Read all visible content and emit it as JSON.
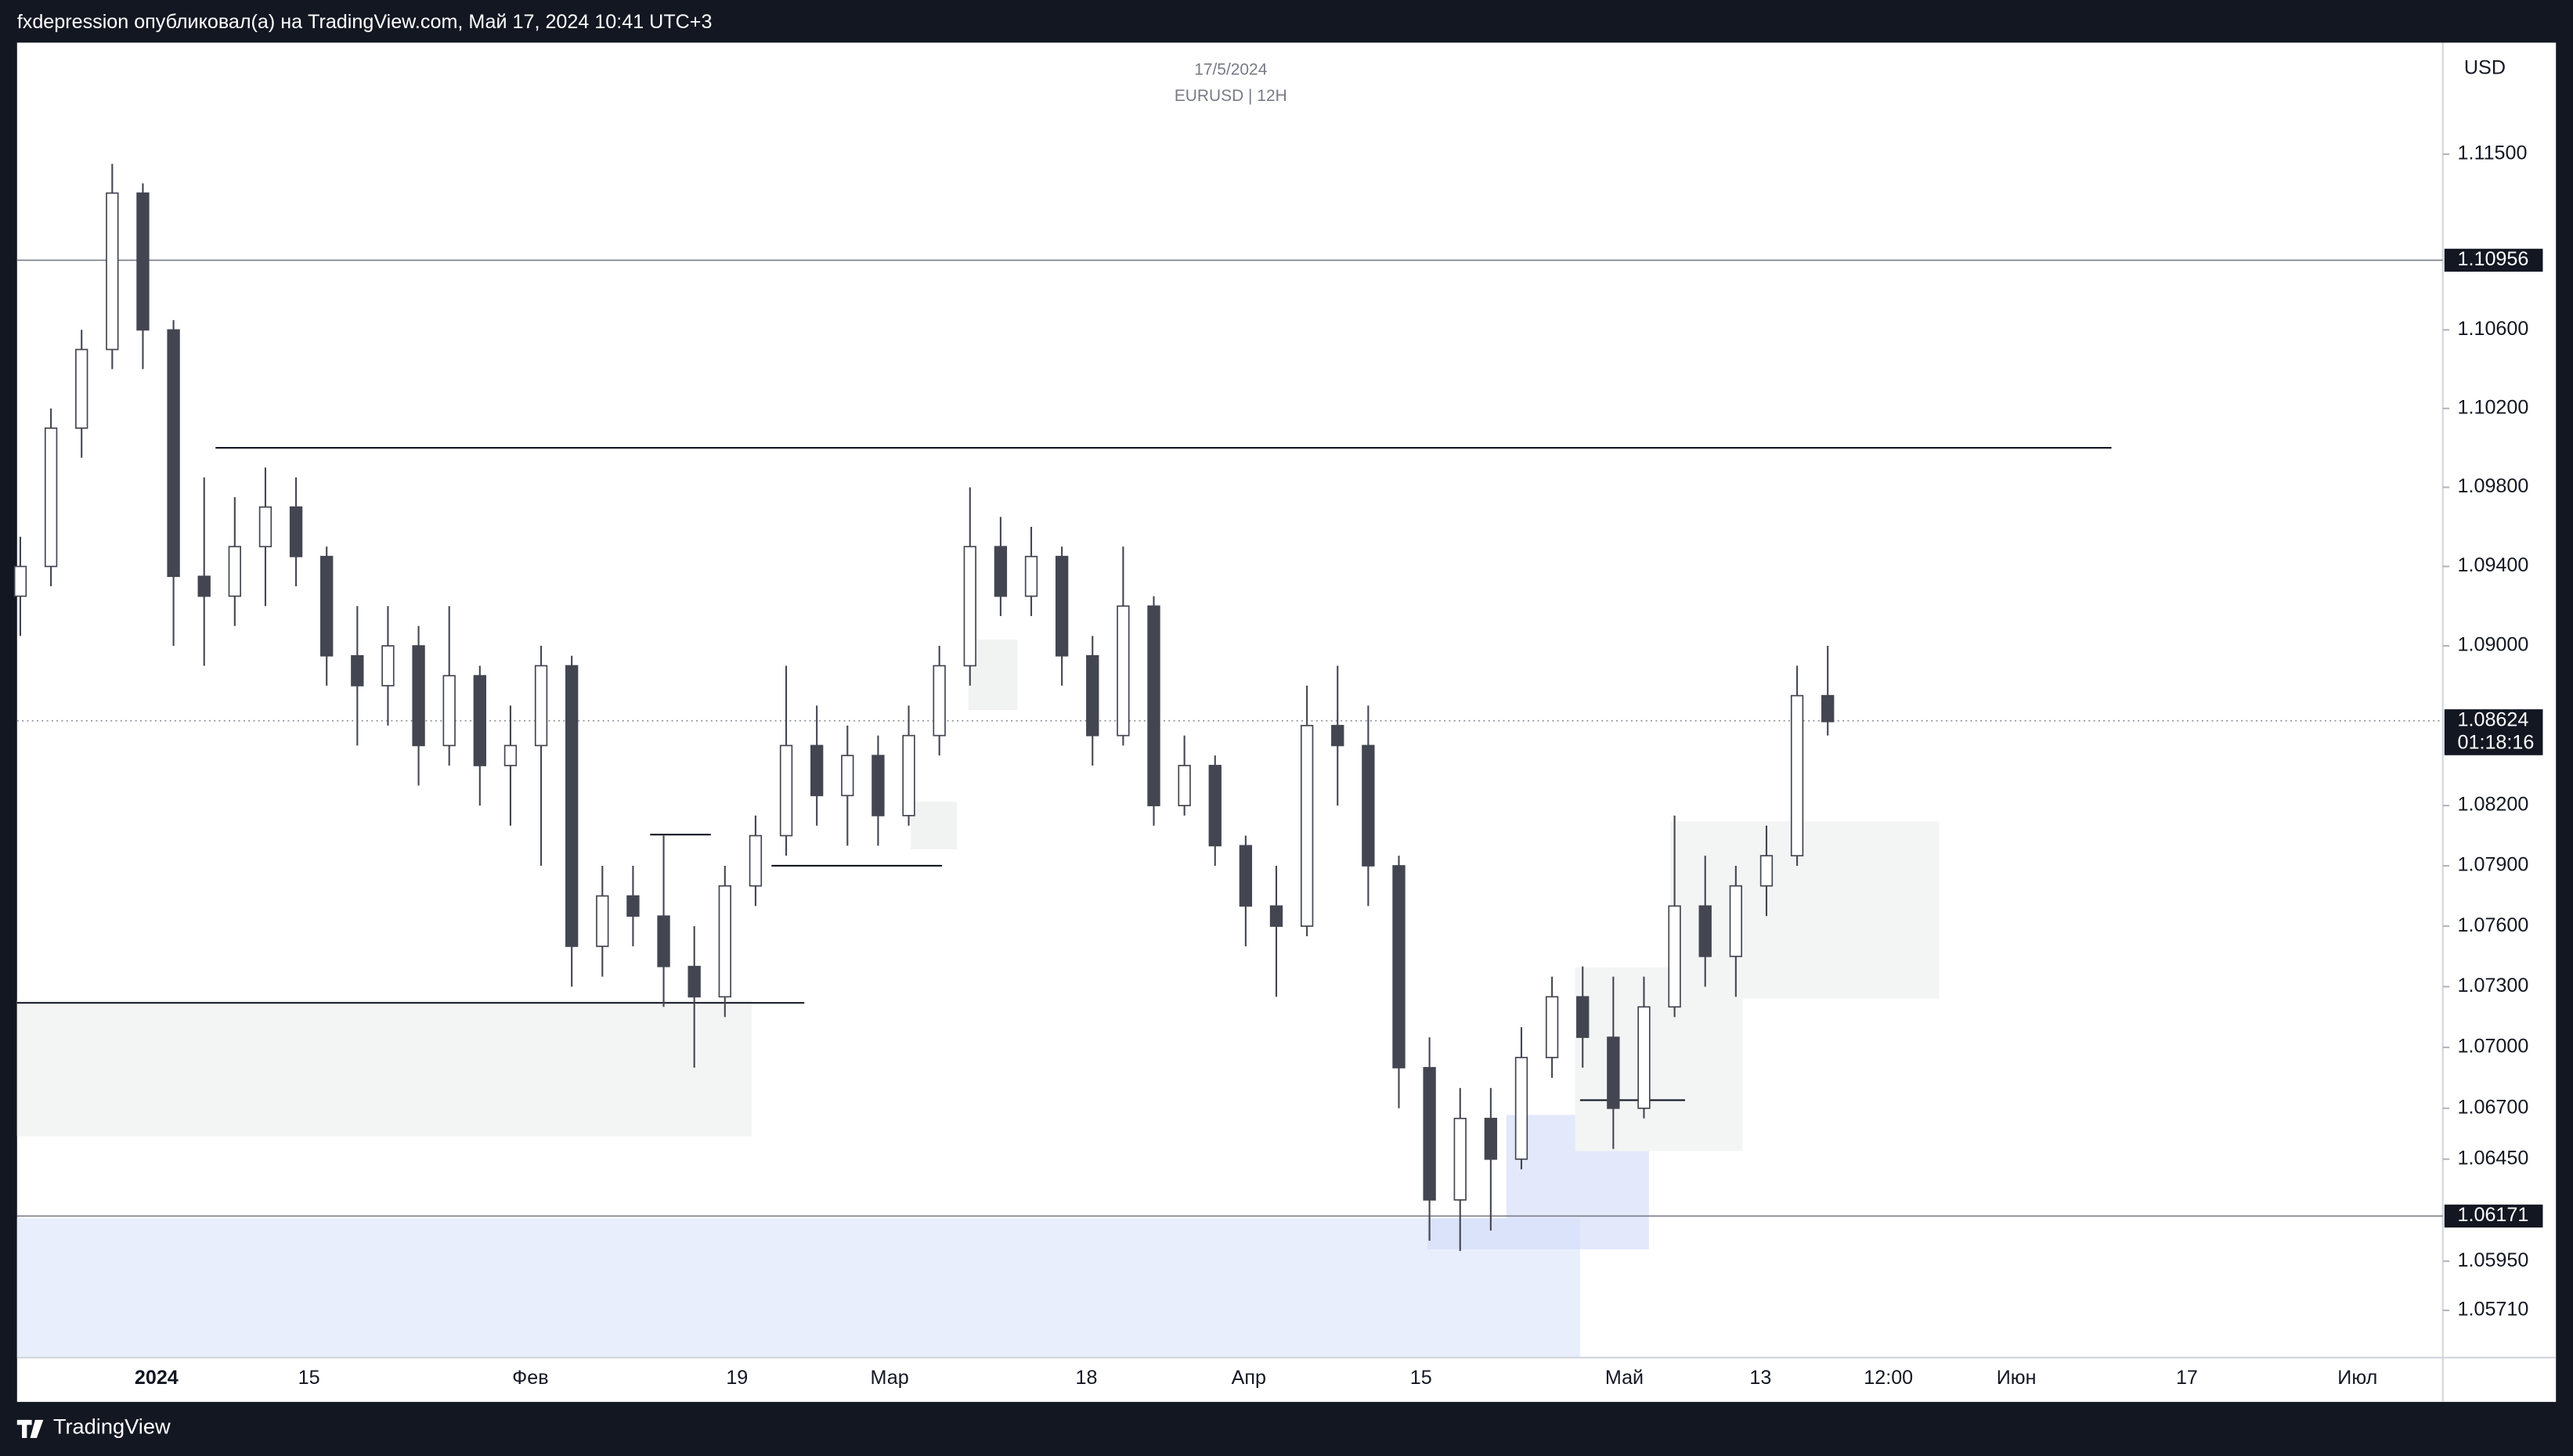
{
  "header": {
    "text": "fxdepression опубликовал(а) на TradingView.com, Май 17, 2024 10:41 UTC+3"
  },
  "footer": {
    "brand": "TradingView"
  },
  "chart_data": {
    "type": "candlestick",
    "title": "17/5/2024",
    "subtitle": "EURUSD | 12H",
    "currency": "USD",
    "log_scale": true,
    "ylim": [
      1.0548,
      1.12075
    ],
    "yticks": [
      {
        "value": 1.115,
        "label": "1.11500"
      },
      {
        "value": 1.106,
        "label": "1.10600"
      },
      {
        "value": 1.102,
        "label": "1.10200"
      },
      {
        "value": 1.098,
        "label": "1.09800"
      },
      {
        "value": 1.094,
        "label": "1.09400"
      },
      {
        "value": 1.09,
        "label": "1.09000"
      },
      {
        "value": 1.082,
        "label": "1.08200"
      },
      {
        "value": 1.079,
        "label": "1.07900"
      },
      {
        "value": 1.076,
        "label": "1.07600"
      },
      {
        "value": 1.073,
        "label": "1.07300"
      },
      {
        "value": 1.07,
        "label": "1.07000"
      },
      {
        "value": 1.067,
        "label": "1.06700"
      },
      {
        "value": 1.0645,
        "label": "1.06450"
      },
      {
        "value": 1.0595,
        "label": "1.05950"
      },
      {
        "value": 1.0571,
        "label": "1.05710"
      }
    ],
    "xticks": [
      "2024",
      "15",
      "Фев",
      "19",
      "Мар",
      "18",
      "Апр",
      "15",
      "Май",
      "13",
      "12:00",
      "Июн",
      "17",
      "Июл"
    ],
    "price_tags": [
      1.10956,
      1.08624,
      1.06171
    ],
    "countdown": "01:18:16",
    "lines": [
      1.1,
      1.0722
    ],
    "open": [
      1.0925,
      1.094,
      1.101,
      1.105,
      1.113,
      1.106,
      1.0935,
      1.0925,
      1.095,
      1.097,
      1.0945,
      1.0895,
      1.088,
      1.09,
      1.085,
      1.0885,
      1.084,
      1.085,
      1.089,
      1.075,
      1.0775,
      1.0765,
      1.074,
      1.0725,
      1.078,
      1.0805,
      1.085,
      1.0825,
      1.0845,
      1.0815,
      1.0855,
      1.089,
      1.095,
      1.0925,
      1.0945,
      1.0895,
      1.0855,
      1.092,
      1.082,
      1.084,
      1.08,
      1.077,
      1.076,
      1.086,
      1.085,
      1.079,
      1.069,
      1.0625,
      1.0665,
      1.0645,
      1.0695,
      1.0725,
      1.0705,
      1.067,
      1.072,
      1.077,
      1.0745,
      1.078,
      1.0795,
      1.0875
    ],
    "high": [
      1.0955,
      1.102,
      1.106,
      1.1145,
      1.1135,
      1.1065,
      1.0985,
      1.0975,
      1.099,
      1.0985,
      1.095,
      1.092,
      1.092,
      1.091,
      1.092,
      1.089,
      1.087,
      1.09,
      1.0895,
      1.079,
      1.079,
      1.0805,
      1.076,
      1.079,
      1.0815,
      1.089,
      1.087,
      1.086,
      1.0855,
      1.087,
      1.09,
      1.098,
      1.0965,
      1.096,
      1.095,
      1.0905,
      1.095,
      1.0925,
      1.0855,
      1.0845,
      1.0805,
      1.079,
      1.088,
      1.089,
      1.087,
      1.0795,
      1.0705,
      1.068,
      1.068,
      1.071,
      1.0735,
      1.074,
      1.0735,
      1.0735,
      1.0815,
      1.0795,
      1.079,
      1.081,
      1.089,
      1.09
    ],
    "low": [
      1.0905,
      1.093,
      1.0995,
      1.104,
      1.104,
      1.09,
      1.089,
      1.091,
      1.092,
      1.093,
      1.088,
      1.085,
      1.086,
      1.083,
      1.084,
      1.082,
      1.081,
      1.079,
      1.073,
      1.0735,
      1.075,
      1.072,
      1.069,
      1.0715,
      1.077,
      1.0795,
      1.081,
      1.08,
      1.08,
      1.081,
      1.0845,
      1.088,
      1.0915,
      1.0915,
      1.088,
      1.084,
      1.085,
      1.081,
      1.0815,
      1.079,
      1.075,
      1.0725,
      1.0755,
      1.082,
      1.077,
      1.067,
      1.0605,
      1.06,
      1.061,
      1.064,
      1.0685,
      1.069,
      1.065,
      1.0665,
      1.0715,
      1.073,
      1.0725,
      1.0765,
      1.079,
      1.0855
    ],
    "close": [
      1.094,
      1.101,
      1.105,
      1.113,
      1.106,
      1.0935,
      1.0925,
      1.095,
      1.097,
      1.0945,
      1.0895,
      1.088,
      1.09,
      1.085,
      1.0885,
      1.084,
      1.085,
      1.089,
      1.075,
      1.0775,
      1.0765,
      1.074,
      1.0725,
      1.078,
      1.0805,
      1.085,
      1.0825,
      1.0845,
      1.0815,
      1.0855,
      1.089,
      1.095,
      1.0925,
      1.0945,
      1.0895,
      1.0855,
      1.092,
      1.082,
      1.084,
      1.08,
      1.077,
      1.076,
      1.086,
      1.085,
      1.079,
      1.069,
      1.0625,
      1.0665,
      1.0645,
      1.0695,
      1.0725,
      1.0705,
      1.067,
      1.072,
      1.077,
      1.0745,
      1.078,
      1.0795,
      1.0875,
      1.0862
    ]
  }
}
